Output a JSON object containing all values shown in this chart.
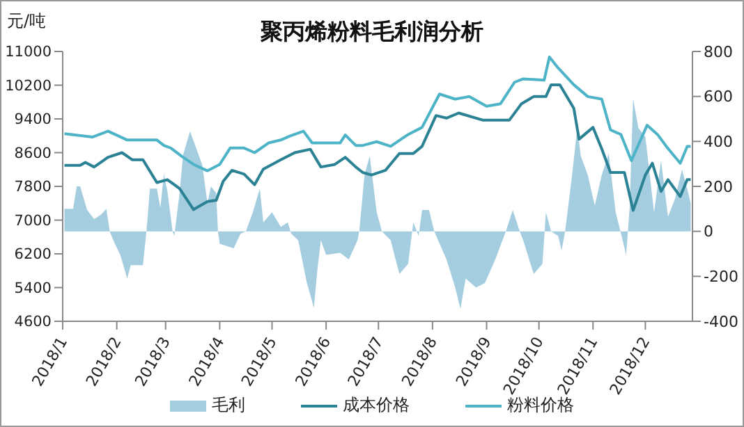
{
  "chart_data": {
    "type": "line",
    "title": "聚丙烯粉料毛利润分析",
    "ylabel": "元/吨",
    "xlim": [
      "2018-01-01",
      "2018-12-28"
    ],
    "xticks": [
      {
        "value": "2018-01-01",
        "label": "2018/1"
      },
      {
        "value": "2018-02-01",
        "label": "2018/2"
      },
      {
        "value": "2018-03-01",
        "label": "2018/3"
      },
      {
        "value": "2018-04-01",
        "label": "2018/4"
      },
      {
        "value": "2018-05-01",
        "label": "2018/5"
      },
      {
        "value": "2018-06-01",
        "label": "2018/6"
      },
      {
        "value": "2018-07-01",
        "label": "2018/7"
      },
      {
        "value": "2018-08-01",
        "label": "2018/8"
      },
      {
        "value": "2018-09-01",
        "label": "2018/9"
      },
      {
        "value": "2018-10-01",
        "label": "2018/10"
      },
      {
        "value": "2018-11-01",
        "label": "2018/11"
      },
      {
        "value": "2018-12-01",
        "label": "2018/12"
      }
    ],
    "ylim": [
      4600,
      11000
    ],
    "yticks": [
      4600,
      5400,
      6200,
      7000,
      7800,
      8600,
      9400,
      10200,
      11000
    ],
    "y2lim": [
      -400,
      800
    ],
    "y2ticks": [
      -400,
      -200,
      0,
      200,
      400,
      600,
      800
    ],
    "legend": "bottom",
    "series": [
      {
        "name": "毛利",
        "type": "area",
        "axis": "y2",
        "color": "#a5cde0",
        "x": [
          "2018-01-02",
          "2018-01-07",
          "2018-01-09",
          "2018-01-11",
          "2018-01-15",
          "2018-01-19",
          "2018-01-23",
          "2018-01-26",
          "2018-01-28",
          "2018-01-30",
          "2018-02-03",
          "2018-02-07",
          "2018-02-09",
          "2018-02-16",
          "2018-02-18",
          "2018-02-20",
          "2018-02-24",
          "2018-02-26",
          "2018-02-28",
          "2018-03-02",
          "2018-03-05",
          "2018-03-06",
          "2018-03-09",
          "2018-03-11",
          "2018-03-15",
          "2018-03-19",
          "2018-03-22",
          "2018-03-25",
          "2018-03-27",
          "2018-03-30",
          "2018-03-31",
          "2018-04-01",
          "2018-04-09",
          "2018-04-13",
          "2018-04-16",
          "2018-04-20",
          "2018-04-24",
          "2018-04-26",
          "2018-05-01",
          "2018-05-06",
          "2018-05-10",
          "2018-05-12",
          "2018-05-16",
          "2018-05-21",
          "2018-05-25",
          "2018-05-27",
          "2018-05-29",
          "2018-06-01",
          "2018-06-09",
          "2018-06-14",
          "2018-06-19",
          "2018-06-20",
          "2018-06-23",
          "2018-06-26",
          "2018-06-30",
          "2018-07-03",
          "2018-07-08",
          "2018-07-13",
          "2018-07-18",
          "2018-07-21",
          "2018-07-24",
          "2018-07-26",
          "2018-07-30",
          "2018-08-02",
          "2018-08-09",
          "2018-08-14",
          "2018-08-17",
          "2018-08-20",
          "2018-08-26",
          "2018-08-31",
          "2018-09-06",
          "2018-09-12",
          "2018-09-16",
          "2018-09-20",
          "2018-09-22",
          "2018-09-28",
          "2018-10-03",
          "2018-10-05",
          "2018-10-08",
          "2018-10-12",
          "2018-10-14",
          "2018-10-16",
          "2018-10-20",
          "2018-10-23",
          "2018-10-25",
          "2018-10-29",
          "2018-11-02",
          "2018-11-06",
          "2018-11-10",
          "2018-11-14",
          "2018-11-18",
          "2018-11-20",
          "2018-11-22",
          "2018-11-24",
          "2018-11-27",
          "2018-12-01",
          "2018-12-06",
          "2018-12-10",
          "2018-12-14",
          "2018-12-18",
          "2018-12-22",
          "2018-12-25",
          "2018-12-27"
        ],
        "values": [
          100,
          100,
          200,
          200,
          95,
          55,
          75,
          100,
          0,
          -40,
          -105,
          -210,
          -150,
          -150,
          0,
          190,
          190,
          105,
          255,
          180,
          0,
          -20,
          170,
          340,
          445,
          360,
          295,
          125,
          200,
          170,
          0,
          -55,
          -75,
          -10,
          0,
          85,
          190,
          40,
          85,
          20,
          40,
          -10,
          -40,
          -230,
          -340,
          -170,
          -40,
          -105,
          -95,
          -125,
          -40,
          0,
          250,
          335,
          85,
          0,
          -40,
          -190,
          -145,
          40,
          -20,
          95,
          95,
          0,
          -125,
          -250,
          -345,
          -210,
          -250,
          -230,
          -125,
          0,
          95,
          0,
          -40,
          -190,
          -145,
          85,
          0,
          -20,
          -85,
          0,
          250,
          460,
          335,
          250,
          115,
          250,
          345,
          85,
          -40,
          -105,
          105,
          590,
          460,
          420,
          85,
          315,
          65,
          145,
          275,
          190,
          125
        ]
      },
      {
        "name": "成本价格",
        "color": "#2a8294",
        "x": [
          "2018-01-02",
          "2018-01-11",
          "2018-01-14",
          "2018-01-19",
          "2018-01-27",
          "2018-02-04",
          "2018-02-10",
          "2018-02-16",
          "2018-02-24",
          "2018-03-02",
          "2018-03-09",
          "2018-03-17",
          "2018-03-25",
          "2018-03-30",
          "2018-04-03",
          "2018-04-08",
          "2018-04-15",
          "2018-04-21",
          "2018-04-26",
          "2018-05-06",
          "2018-05-14",
          "2018-05-23",
          "2018-05-29",
          "2018-06-06",
          "2018-06-12",
          "2018-06-18",
          "2018-06-22",
          "2018-06-27",
          "2018-07-05",
          "2018-07-13",
          "2018-07-21",
          "2018-07-26",
          "2018-08-03",
          "2018-08-09",
          "2018-08-16",
          "2018-08-30",
          "2018-09-14",
          "2018-09-21",
          "2018-09-28",
          "2018-10-05",
          "2018-10-08",
          "2018-10-13",
          "2018-10-21",
          "2018-10-24",
          "2018-11-01",
          "2018-11-06",
          "2018-11-11",
          "2018-11-19",
          "2018-11-24",
          "2018-12-01",
          "2018-12-05",
          "2018-12-10",
          "2018-12-14",
          "2018-12-21",
          "2018-12-25",
          "2018-12-27"
        ],
        "values": [
          8300,
          8300,
          8370,
          8260,
          8490,
          8600,
          8430,
          8430,
          7890,
          7960,
          7750,
          7250,
          7440,
          7470,
          7920,
          8180,
          8090,
          7840,
          8210,
          8430,
          8600,
          8680,
          8260,
          8320,
          8490,
          8260,
          8130,
          8070,
          8180,
          8580,
          8580,
          8750,
          9480,
          9420,
          9540,
          9370,
          9370,
          9760,
          9930,
          9930,
          10210,
          10210,
          9650,
          8920,
          9200,
          8690,
          8130,
          8130,
          7230,
          8070,
          8350,
          7680,
          7960,
          7560,
          7960,
          7960
        ]
      },
      {
        "name": "粉料价格",
        "color": "#4db3c7",
        "x": [
          "2018-01-02",
          "2018-01-18",
          "2018-01-27",
          "2018-02-07",
          "2018-02-24",
          "2018-02-28",
          "2018-03-04",
          "2018-03-10",
          "2018-03-17",
          "2018-03-25",
          "2018-04-01",
          "2018-04-07",
          "2018-04-15",
          "2018-04-21",
          "2018-04-29",
          "2018-05-06",
          "2018-05-11",
          "2018-05-19",
          "2018-05-24",
          "2018-06-09",
          "2018-06-12",
          "2018-06-18",
          "2018-06-22",
          "2018-06-30",
          "2018-07-08",
          "2018-07-18",
          "2018-07-26",
          "2018-08-05",
          "2018-08-14",
          "2018-08-22",
          "2018-09-01",
          "2018-09-09",
          "2018-09-17",
          "2018-09-22",
          "2018-10-04",
          "2018-10-07",
          "2018-10-12",
          "2018-10-21",
          "2018-10-29",
          "2018-11-06",
          "2018-11-11",
          "2018-11-17",
          "2018-11-23",
          "2018-12-02",
          "2018-12-08",
          "2018-12-13",
          "2018-12-21",
          "2018-12-25",
          "2018-12-27"
        ],
        "values": [
          9050,
          8970,
          9110,
          8900,
          8900,
          8770,
          8710,
          8520,
          8320,
          8170,
          8320,
          8710,
          8710,
          8600,
          8830,
          8900,
          8990,
          9110,
          8830,
          8830,
          9020,
          8770,
          8770,
          8860,
          8750,
          9030,
          9200,
          9990,
          9870,
          9930,
          9700,
          9760,
          10270,
          10350,
          10320,
          10870,
          10610,
          10210,
          9930,
          9870,
          9140,
          9030,
          8410,
          9250,
          9030,
          8750,
          8350,
          8750,
          8750
        ]
      }
    ]
  }
}
